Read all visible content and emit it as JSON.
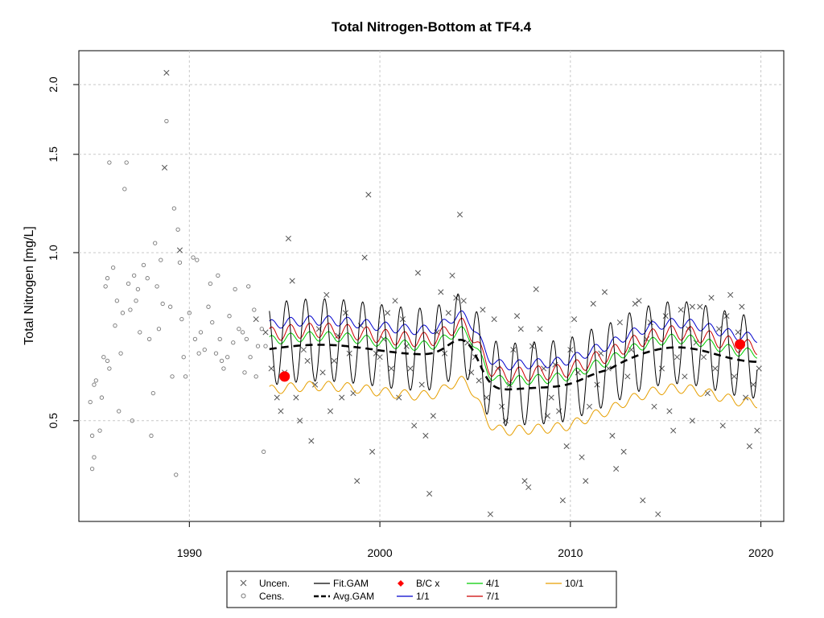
{
  "chart_data": {
    "type": "scatter",
    "title": "Total Nitrogen-Bottom at TF4.4",
    "xlabel": "",
    "ylabel": "Total Nitrogen [mg/L]",
    "xlim": [
      1984.2,
      2021.2
    ],
    "ylim": [
      0.33,
      2.3
    ],
    "yscale": "log",
    "x_ticks": [
      1990,
      2000,
      2010,
      2020
    ],
    "x_tick_labels": [
      "1990",
      "2000",
      "2010",
      "2020"
    ],
    "y_ticks": [
      0.5,
      1.0,
      1.5,
      2.0
    ],
    "y_tick_labels": [
      "0.5",
      "1.0",
      "1.5",
      "2.0"
    ],
    "grid": true,
    "legend_position": "bottom",
    "colors": {
      "uncen": "#555555",
      "cens": "#777777",
      "fit_gam": "#000000",
      "avg_gam": "#000000",
      "bc": "#ff0000",
      "conf_1_1": "#0000cc",
      "conf_4_1": "#00cc00",
      "conf_7_1": "#cc0000",
      "conf_10_1": "#e69f00"
    },
    "legend": [
      {
        "label": "Uncen.",
        "symbol": "x"
      },
      {
        "label": "Cens.",
        "symbol": "o"
      },
      {
        "label": "Fit.GAM",
        "symbol": "line"
      },
      {
        "label": "Avg.GAM",
        "symbol": "dash"
      },
      {
        "label": "B/C x",
        "symbol": "diamond"
      },
      {
        "label": "1/1",
        "symbol": "line"
      },
      {
        "label": "4/1",
        "symbol": "line"
      },
      {
        "label": "7/1",
        "symbol": "line"
      },
      {
        "label": "10/1",
        "symbol": "line"
      }
    ],
    "censored_points": [
      [
        1984.8,
        0.54
      ],
      [
        1984.9,
        0.47
      ],
      [
        1985.0,
        0.58
      ],
      [
        1985.1,
        0.59
      ],
      [
        1985.3,
        0.48
      ],
      [
        1985.4,
        0.55
      ],
      [
        1985.5,
        0.65
      ],
      [
        1985.7,
        0.64
      ],
      [
        1985.8,
        0.62
      ],
      [
        1984.9,
        0.41
      ],
      [
        1985.0,
        0.43
      ],
      [
        1985.6,
        0.87
      ],
      [
        1985.7,
        0.9
      ],
      [
        1985.8,
        1.45
      ],
      [
        1986.0,
        0.94
      ],
      [
        1986.1,
        0.74
      ],
      [
        1986.2,
        0.82
      ],
      [
        1986.4,
        0.66
      ],
      [
        1986.5,
        0.78
      ],
      [
        1986.6,
        1.3
      ],
      [
        1986.7,
        1.45
      ],
      [
        1986.8,
        0.88
      ],
      [
        1986.9,
        0.79
      ],
      [
        1987.0,
        0.5
      ],
      [
        1987.2,
        0.82
      ],
      [
        1987.3,
        0.86
      ],
      [
        1987.4,
        0.72
      ],
      [
        1987.6,
        0.95
      ],
      [
        1987.8,
        0.9
      ],
      [
        1987.9,
        0.7
      ],
      [
        1988.0,
        0.47
      ],
      [
        1988.2,
        1.04
      ],
      [
        1988.3,
        0.87
      ],
      [
        1988.4,
        0.73
      ],
      [
        1988.5,
        0.97
      ],
      [
        1988.6,
        0.81
      ],
      [
        1988.8,
        1.72
      ],
      [
        1989.0,
        0.8
      ],
      [
        1989.1,
        0.6
      ],
      [
        1989.2,
        1.2
      ],
      [
        1989.4,
        1.1
      ],
      [
        1989.5,
        0.96
      ],
      [
        1989.6,
        0.76
      ],
      [
        1989.7,
        0.65
      ],
      [
        1989.8,
        0.6
      ],
      [
        1990.0,
        0.78
      ],
      [
        1990.2,
        0.98
      ],
      [
        1990.3,
        0.7
      ],
      [
        1990.4,
        0.97
      ],
      [
        1990.6,
        0.72
      ],
      [
        1990.8,
        0.67
      ],
      [
        1991.0,
        0.8
      ],
      [
        1991.1,
        0.88
      ],
      [
        1991.2,
        0.75
      ],
      [
        1991.4,
        0.66
      ],
      [
        1991.5,
        0.91
      ],
      [
        1991.6,
        0.7
      ],
      [
        1991.8,
        0.62
      ],
      [
        1992.0,
        0.65
      ],
      [
        1992.1,
        0.77
      ],
      [
        1992.3,
        0.69
      ],
      [
        1992.4,
        0.86
      ],
      [
        1992.6,
        0.73
      ],
      [
        1992.8,
        0.72
      ],
      [
        1993.0,
        0.7
      ],
      [
        1993.1,
        0.87
      ],
      [
        1993.2,
        0.65
      ],
      [
        1993.4,
        0.79
      ],
      [
        1993.5,
        0.6
      ],
      [
        1993.6,
        0.68
      ],
      [
        1993.8,
        0.73
      ],
      [
        1993.9,
        0.44
      ],
      [
        1986.3,
        0.52
      ],
      [
        1988.1,
        0.56
      ],
      [
        1989.3,
        0.4
      ],
      [
        1990.5,
        0.66
      ],
      [
        1991.7,
        0.64
      ],
      [
        1992.9,
        0.61
      ],
      [
        1994.0,
        0.68
      ],
      [
        1987.1,
        0.91
      ]
    ],
    "uncensored_points": [
      [
        1988.8,
        2.1
      ],
      [
        1988.7,
        1.42
      ],
      [
        1989.5,
        1.01
      ],
      [
        1993.5,
        0.76
      ],
      [
        1994.0,
        0.72
      ],
      [
        1994.3,
        0.62
      ],
      [
        1994.6,
        0.55
      ],
      [
        1994.8,
        0.52
      ],
      [
        1995.0,
        0.61
      ],
      [
        1995.2,
        1.06
      ],
      [
        1995.4,
        0.89
      ],
      [
        1995.6,
        0.55
      ],
      [
        1995.8,
        0.5
      ],
      [
        1996.0,
        0.67
      ],
      [
        1996.2,
        0.64
      ],
      [
        1996.4,
        0.46
      ],
      [
        1996.6,
        0.58
      ],
      [
        1996.8,
        0.73
      ],
      [
        1997.0,
        0.61
      ],
      [
        1997.2,
        0.84
      ],
      [
        1997.4,
        0.52
      ],
      [
        1997.6,
        0.64
      ],
      [
        1997.8,
        0.71
      ],
      [
        1998.0,
        0.55
      ],
      [
        1998.2,
        0.78
      ],
      [
        1998.4,
        0.66
      ],
      [
        1998.6,
        0.56
      ],
      [
        1998.8,
        0.39
      ],
      [
        1999.0,
        0.74
      ],
      [
        1999.2,
        0.98
      ],
      [
        1999.4,
        1.27
      ],
      [
        1999.6,
        0.44
      ],
      [
        1999.8,
        0.66
      ],
      [
        2000.0,
        0.65
      ],
      [
        2000.2,
        0.7
      ],
      [
        2000.4,
        0.78
      ],
      [
        2000.6,
        0.62
      ],
      [
        2000.8,
        0.82
      ],
      [
        2001.0,
        0.55
      ],
      [
        2001.2,
        0.76
      ],
      [
        2001.4,
        0.68
      ],
      [
        2001.6,
        0.62
      ],
      [
        2001.8,
        0.49
      ],
      [
        2002.0,
        0.92
      ],
      [
        2002.2,
        0.58
      ],
      [
        2002.4,
        0.47
      ],
      [
        2002.6,
        0.37
      ],
      [
        2002.8,
        0.51
      ],
      [
        2003.0,
        0.72
      ],
      [
        2003.2,
        0.85
      ],
      [
        2003.4,
        0.66
      ],
      [
        2003.6,
        0.78
      ],
      [
        2003.8,
        0.91
      ],
      [
        2004.0,
        0.83
      ],
      [
        2004.2,
        1.17
      ],
      [
        2004.4,
        0.82
      ],
      [
        2004.6,
        0.69
      ],
      [
        2004.8,
        0.61
      ],
      [
        2005.0,
        0.65
      ],
      [
        2005.2,
        0.59
      ],
      [
        2005.4,
        0.79
      ],
      [
        2005.6,
        0.55
      ],
      [
        2005.8,
        0.34
      ],
      [
        2006.0,
        0.76
      ],
      [
        2006.2,
        0.62
      ],
      [
        2006.4,
        0.53
      ],
      [
        2006.6,
        0.5
      ],
      [
        2006.8,
        0.58
      ],
      [
        2007.0,
        0.67
      ],
      [
        2007.2,
        0.77
      ],
      [
        2007.4,
        0.73
      ],
      [
        2007.6,
        0.39
      ],
      [
        2007.8,
        0.38
      ],
      [
        2008.0,
        0.68
      ],
      [
        2008.2,
        0.86
      ],
      [
        2008.4,
        0.73
      ],
      [
        2008.6,
        0.62
      ],
      [
        2008.8,
        0.51
      ],
      [
        2009.0,
        0.55
      ],
      [
        2009.2,
        0.63
      ],
      [
        2009.4,
        0.52
      ],
      [
        2009.6,
        0.36
      ],
      [
        2009.8,
        0.45
      ],
      [
        2010.0,
        0.67
      ],
      [
        2010.2,
        0.76
      ],
      [
        2010.4,
        0.61
      ],
      [
        2010.6,
        0.43
      ],
      [
        2010.8,
        0.39
      ],
      [
        2011.0,
        0.53
      ],
      [
        2011.2,
        0.81
      ],
      [
        2011.4,
        0.58
      ],
      [
        2011.6,
        0.66
      ],
      [
        2011.8,
        0.85
      ],
      [
        2012.0,
        0.62
      ],
      [
        2012.2,
        0.47
      ],
      [
        2012.4,
        0.41
      ],
      [
        2012.6,
        0.75
      ],
      [
        2012.8,
        0.44
      ],
      [
        2013.0,
        0.6
      ],
      [
        2013.2,
        0.67
      ],
      [
        2013.4,
        0.81
      ],
      [
        2013.6,
        0.82
      ],
      [
        2013.8,
        0.36
      ],
      [
        2014.0,
        0.7
      ],
      [
        2014.2,
        0.75
      ],
      [
        2014.4,
        0.53
      ],
      [
        2014.6,
        0.34
      ],
      [
        2014.8,
        0.62
      ],
      [
        2015.0,
        0.77
      ],
      [
        2015.2,
        0.52
      ],
      [
        2015.4,
        0.48
      ],
      [
        2015.6,
        0.65
      ],
      [
        2015.8,
        0.79
      ],
      [
        2016.0,
        0.6
      ],
      [
        2016.2,
        0.73
      ],
      [
        2016.4,
        0.5
      ],
      [
        2016.6,
        0.69
      ],
      [
        2016.8,
        0.8
      ],
      [
        2017.0,
        0.65
      ],
      [
        2017.2,
        0.56
      ],
      [
        2017.4,
        0.83
      ],
      [
        2017.6,
        0.62
      ],
      [
        2017.8,
        0.73
      ],
      [
        2018.0,
        0.49
      ],
      [
        2018.2,
        0.77
      ],
      [
        2018.4,
        0.84
      ],
      [
        2018.6,
        0.6
      ],
      [
        2018.8,
        0.72
      ],
      [
        2019.0,
        0.8
      ],
      [
        2019.2,
        0.55
      ],
      [
        2019.4,
        0.45
      ],
      [
        2019.6,
        0.58
      ],
      [
        2019.8,
        0.48
      ],
      [
        2019.9,
        0.62
      ],
      [
        2016.4,
        0.8
      ]
    ],
    "bc_points": [
      [
        1995.0,
        0.6
      ],
      [
        2018.9,
        0.685
      ]
    ],
    "fit_gam_period": [
      1994.2,
      2019.8
    ]
  }
}
